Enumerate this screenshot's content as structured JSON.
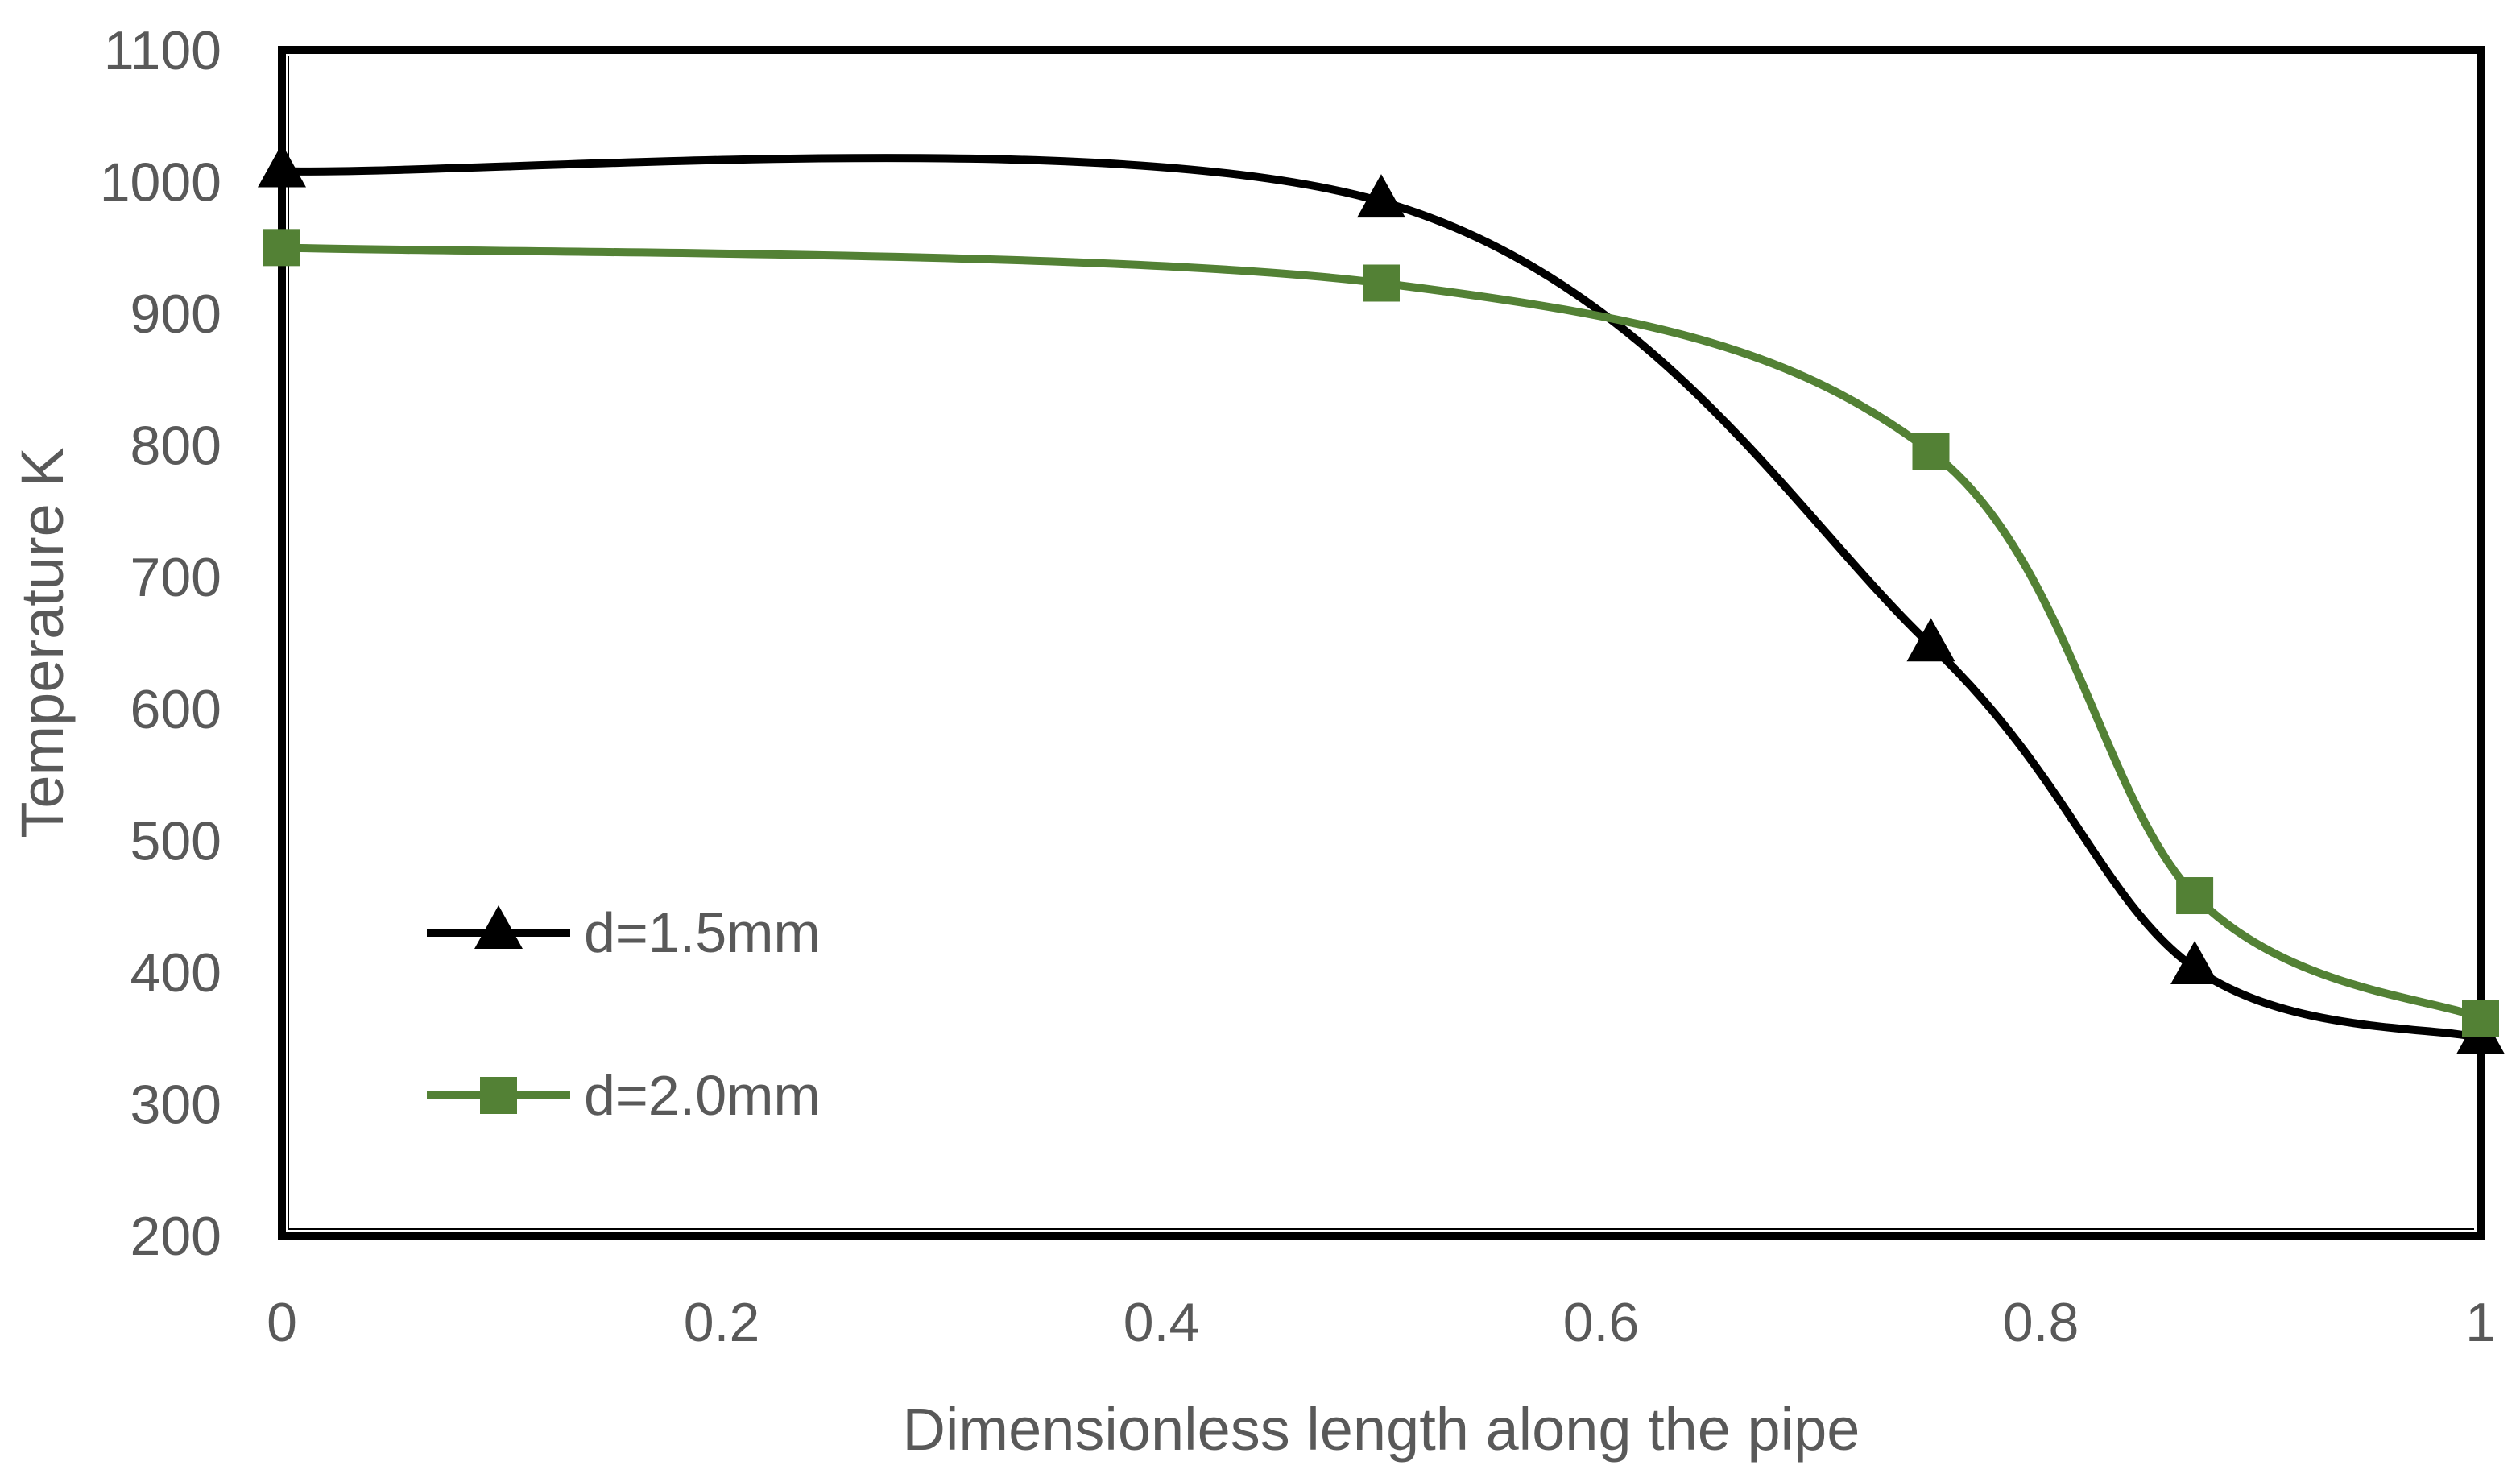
{
  "chart_data": {
    "type": "line",
    "title": "",
    "xlabel": "Dimensionless length along the pipe",
    "ylabel": "Temperature K",
    "xlim": [
      0,
      1
    ],
    "ylim": [
      200,
      1100
    ],
    "x_ticks": [
      "0",
      "0.2",
      "0.4",
      "0.6",
      "0.8",
      "1"
    ],
    "y_ticks": [
      "200",
      "300",
      "400",
      "500",
      "600",
      "700",
      "800",
      "900",
      "1000",
      "1100"
    ],
    "grid": false,
    "legend_position": "lower-left",
    "smooth": true,
    "series": [
      {
        "name": "d=1.5mm",
        "color": "#000000",
        "marker": "triangle",
        "x": [
          0,
          0.5,
          0.75,
          0.87,
          1
        ],
        "y": [
          1008,
          985,
          648,
          403,
          350
        ]
      },
      {
        "name": "d=2.0mm",
        "color": "#538135",
        "marker": "square",
        "x": [
          0,
          0.5,
          0.75,
          0.87,
          1
        ],
        "y": [
          950,
          923,
          795,
          458,
          365
        ]
      }
    ]
  }
}
